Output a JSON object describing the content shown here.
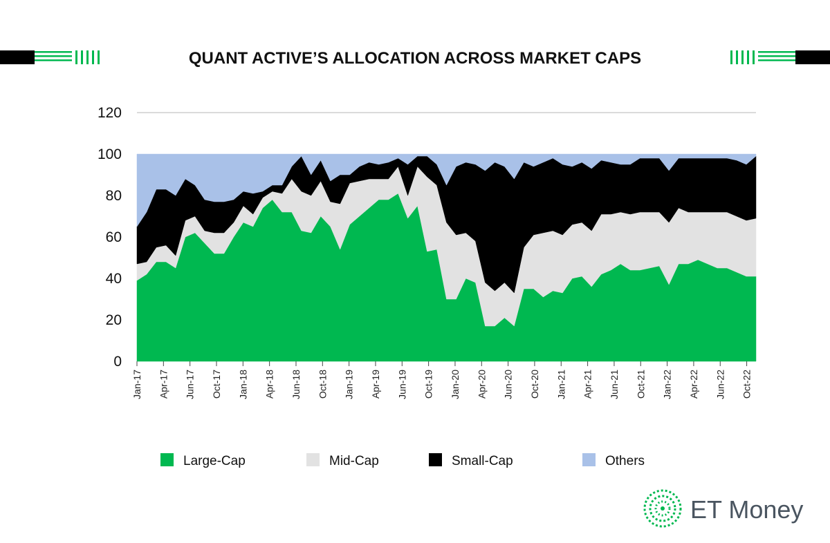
{
  "chart_data": {
    "type": "area",
    "stacked": true,
    "title": "QUANT ACTIVE’S ALLOCATION ACROSS MARKET CAPS",
    "xlabel": "",
    "ylabel": "",
    "ylim": [
      0,
      120
    ],
    "yticks": [
      0,
      20,
      40,
      60,
      80,
      100,
      120
    ],
    "grid": true,
    "legend_position": "bottom",
    "x_tick_labels": [
      "Jan-17",
      "Apr-17",
      "Jun-17",
      "Oct-17",
      "Jan-18",
      "Apr-18",
      "Jun-18",
      "Oct-18",
      "Jan-19",
      "Apr-19",
      "Jun-19",
      "Oct-19",
      "Jan-20",
      "Apr-20",
      "Jun-20",
      "Oct-20",
      "Jan-21",
      "Apr-21",
      "Jun-21",
      "Oct-21",
      "Jan-22",
      "Apr-22",
      "Jun-22",
      "Oct-22"
    ],
    "series": [
      {
        "name": "Large-Cap",
        "color": "#00b850",
        "values": [
          39,
          42,
          48,
          48,
          45,
          60,
          62,
          57,
          52,
          52,
          60,
          67,
          65,
          74,
          78,
          72,
          72,
          63,
          62,
          70,
          65,
          54,
          66,
          70,
          74,
          78,
          78,
          81,
          69,
          75,
          53,
          54,
          30,
          30,
          40,
          38,
          17,
          17,
          21,
          17,
          35,
          35,
          31,
          34,
          33,
          40,
          41,
          36,
          42,
          44,
          47,
          44,
          44,
          45,
          46,
          37,
          47,
          47,
          49,
          47,
          45,
          45,
          43,
          41,
          41
        ]
      },
      {
        "name": "Mid-Cap",
        "color": "#e2e2e2",
        "values": [
          8,
          6,
          7,
          8,
          6,
          8,
          8,
          6,
          10,
          10,
          7,
          8,
          6,
          5,
          4,
          9,
          16,
          19,
          18,
          17,
          12,
          22,
          20,
          17,
          14,
          10,
          10,
          13,
          11,
          19,
          36,
          31,
          37,
          31,
          22,
          20,
          21,
          17,
          17,
          16,
          20,
          26,
          31,
          29,
          28,
          26,
          26,
          27,
          29,
          27,
          25,
          27,
          28,
          27,
          26,
          30,
          27,
          25,
          23,
          25,
          27,
          27,
          27,
          27,
          28
        ]
      },
      {
        "name": "Small-Cap",
        "color": "#000000",
        "values": [
          18,
          24,
          28,
          27,
          29,
          20,
          15,
          15,
          15,
          15,
          11,
          7,
          10,
          3,
          3,
          4,
          6,
          17,
          10,
          10,
          10,
          14,
          4,
          7,
          8,
          7,
          8,
          4,
          15,
          5,
          10,
          10,
          18,
          33,
          34,
          37,
          54,
          62,
          56,
          55,
          41,
          33,
          34,
          35,
          34,
          28,
          29,
          30,
          26,
          25,
          23,
          24,
          26,
          26,
          26,
          25,
          24,
          26,
          26,
          26,
          26,
          26,
          27,
          27,
          30
        ]
      },
      {
        "name": "Others",
        "color": "#a9c1e8",
        "values": [
          35,
          28,
          17,
          17,
          20,
          12,
          15,
          22,
          23,
          23,
          22,
          18,
          19,
          18,
          15,
          15,
          6,
          1,
          10,
          3,
          13,
          10,
          10,
          6,
          4,
          5,
          4,
          2,
          5,
          1,
          1,
          5,
          15,
          6,
          4,
          5,
          8,
          4,
          6,
          12,
          4,
          6,
          4,
          2,
          5,
          6,
          4,
          7,
          3,
          4,
          5,
          5,
          2,
          2,
          2,
          8,
          2,
          2,
          2,
          2,
          2,
          2,
          3,
          5,
          1
        ]
      }
    ]
  },
  "brand": {
    "name": "ET Money"
  }
}
